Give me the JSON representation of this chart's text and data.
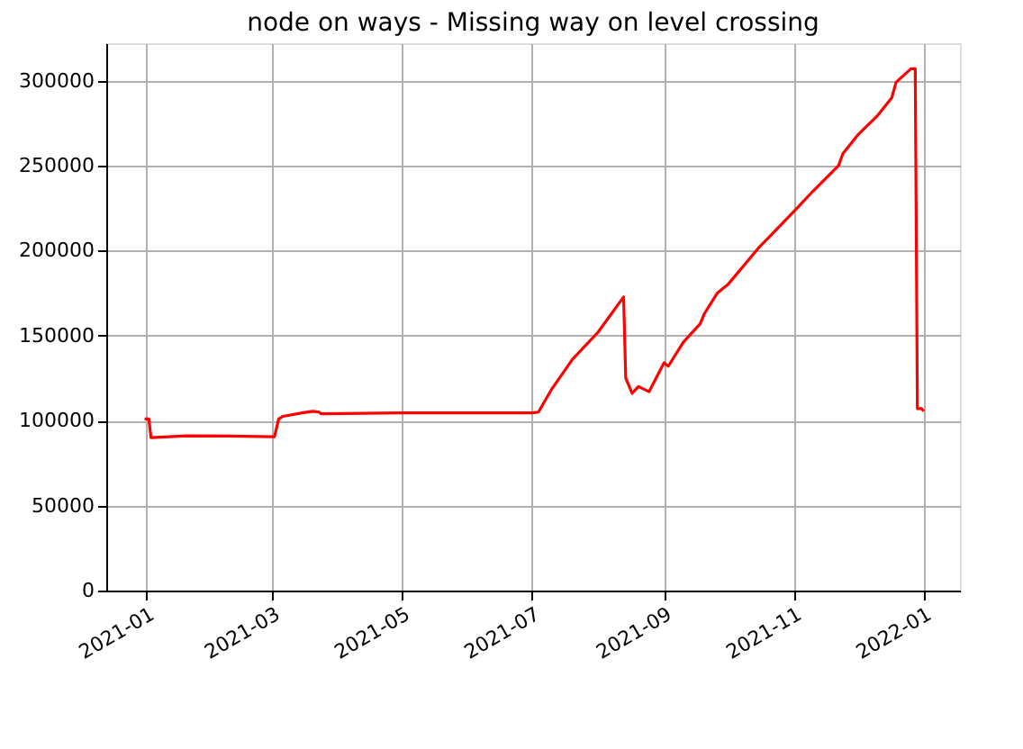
{
  "chart_data": {
    "type": "line",
    "title": "node on ways - Missing way on level crossing",
    "x": [
      "2020-12-31",
      "2021-01-02",
      "2021-01-03",
      "2021-01-20",
      "2021-02-15",
      "2021-03-02",
      "2021-03-04",
      "2021-03-06",
      "2021-03-15",
      "2021-03-20",
      "2021-03-23",
      "2021-03-24",
      "2021-05-01",
      "2021-07-01",
      "2021-07-04",
      "2021-07-10",
      "2021-07-20",
      "2021-08-01",
      "2021-08-13",
      "2021-08-14",
      "2021-08-17",
      "2021-08-20",
      "2021-08-25",
      "2021-09-01",
      "2021-09-03",
      "2021-09-10",
      "2021-09-18",
      "2021-09-20",
      "2021-09-26",
      "2021-10-01",
      "2021-10-15",
      "2021-11-01",
      "2021-11-10",
      "2021-11-22",
      "2021-11-24",
      "2021-12-01",
      "2021-12-10",
      "2021-12-17",
      "2021-12-19",
      "2021-12-26",
      "2021-12-28",
      "2021-12-29",
      "2021-12-31",
      "2022-01-01"
    ],
    "series": [
      {
        "color": "#ff0000",
        "values": [
          101000,
          101000,
          90000,
          91000,
          90800,
          90500,
          101000,
          102500,
          104500,
          105500,
          105000,
          104000,
          104500,
          104500,
          105000,
          118000,
          136000,
          152000,
          172700,
          125000,
          116000,
          120000,
          117000,
          134000,
          132000,
          146000,
          157000,
          163000,
          175000,
          180000,
          201000,
          223000,
          235000,
          250000,
          257000,
          268000,
          279000,
          290000,
          299000,
          307000,
          307000,
          107000,
          107000,
          105500
        ]
      }
    ],
    "xlim": [
      "2020-12-13",
      "2022-01-18"
    ],
    "xticks": [
      {
        "value": "2021-01-01",
        "label": "2021-01"
      },
      {
        "value": "2021-03-01",
        "label": "2021-03"
      },
      {
        "value": "2021-05-01",
        "label": "2021-05"
      },
      {
        "value": "2021-07-01",
        "label": "2021-07"
      },
      {
        "value": "2021-09-01",
        "label": "2021-09"
      },
      {
        "value": "2021-11-01",
        "label": "2021-11"
      },
      {
        "value": "2022-01-01",
        "label": "2022-01"
      }
    ],
    "ylim": [
      0,
      322000
    ],
    "yticks": [
      0,
      50000,
      100000,
      150000,
      200000,
      250000,
      300000
    ],
    "grid": true,
    "marker": "none",
    "line_style": "solid"
  }
}
